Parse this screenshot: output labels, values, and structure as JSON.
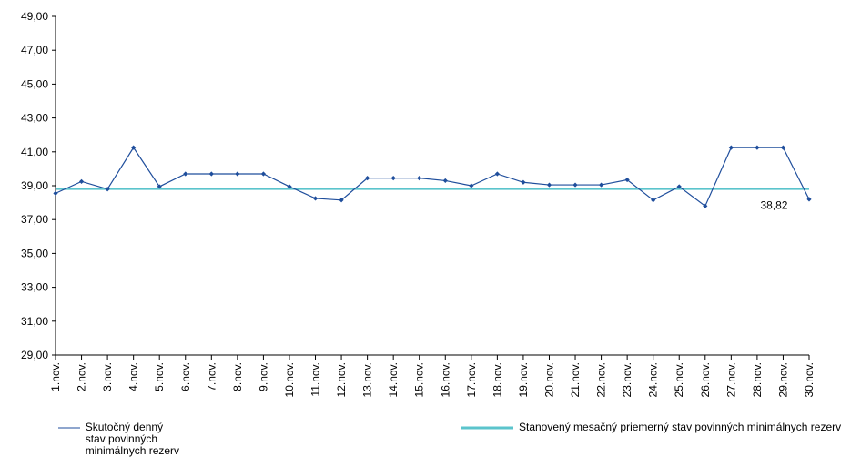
{
  "chart_data": {
    "type": "line",
    "categories": [
      "1.nov.",
      "2.nov.",
      "3.nov.",
      "4.nov.",
      "5.nov.",
      "6.nov.",
      "7.nov.",
      "8.nov.",
      "9.nov.",
      "10.nov.",
      "11.nov.",
      "12.nov.",
      "13.nov.",
      "14.nov.",
      "15.nov.",
      "16.nov.",
      "17.nov.",
      "18.nov.",
      "19.nov.",
      "20.nov.",
      "21.nov.",
      "22.nov.",
      "23.nov.",
      "24.nov.",
      "25.nov.",
      "26.nov.",
      "27.nov.",
      "28.nov.",
      "29.nov.",
      "30.nov."
    ],
    "series": [
      {
        "name": "Skutočný denný stav povinných minimálnych rezerv",
        "color": "#1f4e9c",
        "marker": "diamond",
        "values": [
          38.55,
          39.25,
          38.8,
          41.25,
          38.95,
          39.7,
          39.7,
          39.7,
          39.7,
          38.95,
          38.25,
          38.15,
          39.45,
          39.45,
          39.45,
          39.3,
          39.0,
          39.7,
          39.2,
          39.05,
          39.05,
          39.05,
          39.35,
          38.15,
          38.95,
          37.8,
          41.25,
          41.25,
          41.25,
          38.2
        ]
      },
      {
        "name": "Stanovený mesačný priemerný stav povinných minimálnych rezerv",
        "color": "#5bc4cc",
        "marker": "none",
        "values": [
          38.82,
          38.82,
          38.82,
          38.82,
          38.82,
          38.82,
          38.82,
          38.82,
          38.82,
          38.82,
          38.82,
          38.82,
          38.82,
          38.82,
          38.82,
          38.82,
          38.82,
          38.82,
          38.82,
          38.82,
          38.82,
          38.82,
          38.82,
          38.82,
          38.82,
          38.82,
          38.82,
          38.82,
          38.82,
          38.82
        ]
      }
    ],
    "ylim": [
      29,
      49
    ],
    "yticks": [
      "29,00",
      "31,00",
      "33,00",
      "35,00",
      "37,00",
      "39,00",
      "41,00",
      "43,00",
      "45,00",
      "47,00",
      "49,00"
    ],
    "annotations": [
      {
        "text": "38,82",
        "series": 1,
        "category_index": 28
      }
    ],
    "grid": false,
    "legend_position": "bottom",
    "title": "",
    "xlabel": "",
    "ylabel": ""
  }
}
